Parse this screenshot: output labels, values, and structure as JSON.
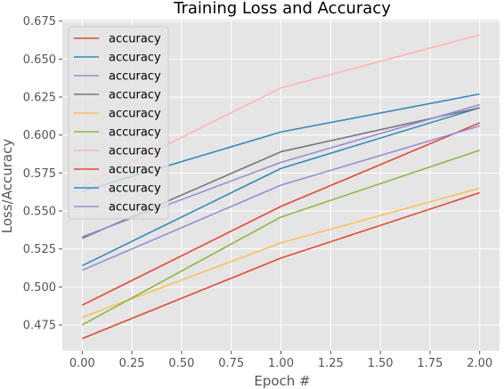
{
  "chart_data": {
    "type": "line",
    "title": "Training Loss and Accuracy",
    "xlabel": "Epoch #",
    "ylabel": "Loss/Accuracy",
    "x": [
      0,
      1,
      2
    ],
    "xlim": [
      -0.1,
      2.1
    ],
    "ylim": [
      0.458,
      0.676
    ],
    "xticks": [
      "0.00",
      "0.25",
      "0.50",
      "0.75",
      "1.00",
      "1.25",
      "1.50",
      "1.75",
      "2.00"
    ],
    "yticks": [
      "0.475",
      "0.500",
      "0.525",
      "0.550",
      "0.575",
      "0.600",
      "0.625",
      "0.650",
      "0.675"
    ],
    "grid": true,
    "legend_position": "top-left",
    "series": [
      {
        "name": "accuracy",
        "color": "#E24A33",
        "values": [
          0.488,
          0.553,
          0.608
        ]
      },
      {
        "name": "accuracy",
        "color": "#348ABD",
        "values": [
          0.514,
          0.578,
          0.618
        ]
      },
      {
        "name": "accuracy",
        "color": "#988ED5",
        "values": [
          0.511,
          0.567,
          0.606
        ]
      },
      {
        "name": "accuracy",
        "color": "#777777",
        "values": [
          0.532,
          0.589,
          0.618
        ]
      },
      {
        "name": "accuracy",
        "color": "#FBC15E",
        "values": [
          0.48,
          0.529,
          0.565
        ]
      },
      {
        "name": "accuracy",
        "color": "#8EBA42",
        "values": [
          0.475,
          0.546,
          0.59
        ]
      },
      {
        "name": "accuracy",
        "color": "#FFB5B8",
        "values": [
          0.566,
          0.631,
          0.666
        ]
      },
      {
        "name": "accuracy",
        "color": "#E24A33",
        "values": [
          0.466,
          0.519,
          0.562
        ]
      },
      {
        "name": "accuracy",
        "color": "#348ABD",
        "values": [
          0.563,
          0.602,
          0.627
        ]
      },
      {
        "name": "accuracy",
        "color": "#988ED5",
        "values": [
          0.533,
          0.582,
          0.62
        ]
      }
    ]
  }
}
